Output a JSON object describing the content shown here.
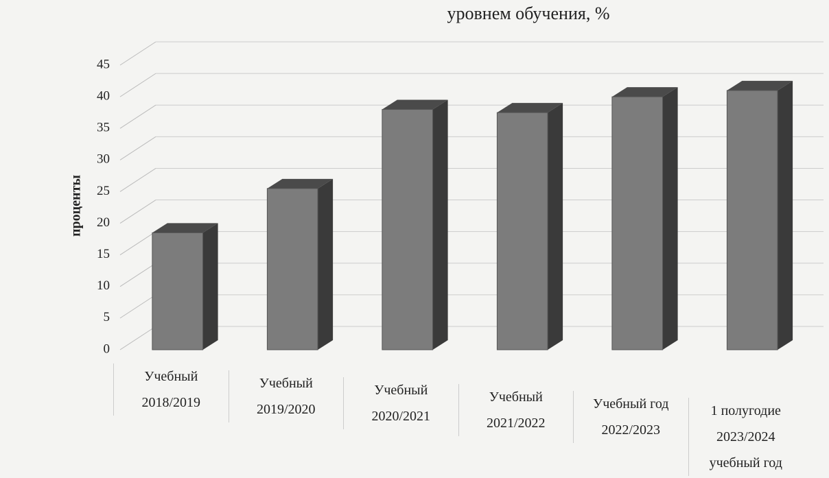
{
  "chart_data": {
    "type": "bar3d",
    "title": "уровнем обучения, %",
    "y_label": "проценты",
    "categories": [
      "Учебный\n2018/2019",
      "Учебный\n2019/2020",
      "Учебный\n2020/2021",
      "Учебный\n2021/2022",
      "Учебный год\n2022/2023",
      "1 полугодие\n2023/2024\nучебный год"
    ],
    "values": [
      18.5,
      25.5,
      38,
      37.5,
      40,
      41
    ],
    "color": "#7c7c7c",
    "ylim": [
      0,
      45
    ],
    "yticks": [
      0,
      5,
      10,
      15,
      20,
      25,
      30,
      35,
      40,
      45
    ],
    "grid": true
  }
}
